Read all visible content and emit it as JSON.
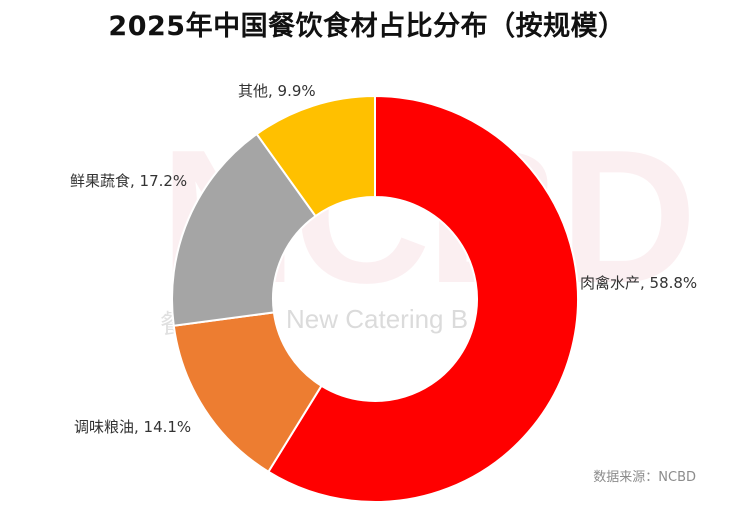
{
  "title": "2025年中国餐饮食材占比分布（按规模）",
  "source": "数据来源：NCBD",
  "watermark": {
    "logo_text": "NCBD",
    "subtitle": "New Catering B",
    "left_char": "餐"
  },
  "chart_data": {
    "type": "pie",
    "title": "2025年中国餐饮食材占比分布（按规模）",
    "donut": true,
    "start_angle_deg": 0,
    "direction": "clockwise",
    "slices": [
      {
        "name": "肉禽水产",
        "value": 58.8,
        "label": "肉禽水产, 58.8%",
        "color": "#ff0000"
      },
      {
        "name": "调味粮油",
        "value": 14.1,
        "label": "调味粮油, 14.1%",
        "color": "#ed7d31"
      },
      {
        "name": "鲜果蔬食",
        "value": 17.2,
        "label": "鲜果蔬食, 17.2%",
        "color": "#a5a5a5"
      },
      {
        "name": "其他",
        "value": 9.9,
        "label": "其他, 9.9%",
        "color": "#ffc000"
      }
    ],
    "legend": "none",
    "data_labels": "outside"
  }
}
